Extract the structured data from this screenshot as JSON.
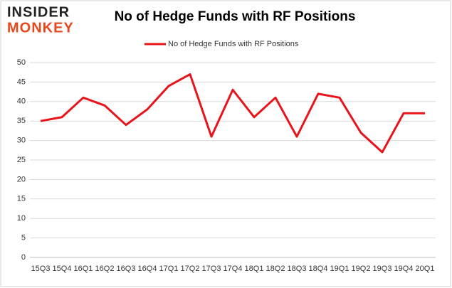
{
  "logo": {
    "top": "INSIDER",
    "bottom": "MONKEY"
  },
  "chart_data": {
    "type": "line",
    "title": "No of Hedge Funds with RF Positions",
    "categories": [
      "15Q3",
      "15Q4",
      "16Q1",
      "16Q2",
      "16Q3",
      "16Q4",
      "17Q1",
      "17Q2",
      "17Q3",
      "17Q4",
      "18Q1",
      "18Q2",
      "18Q3",
      "18Q4",
      "19Q1",
      "19Q2",
      "19Q3",
      "19Q4",
      "20Q1"
    ],
    "series": [
      {
        "name": "No of Hedge Funds with RF Positions",
        "color": "#e8141b",
        "values": [
          35,
          36,
          41,
          39,
          34,
          38,
          44,
          47,
          31,
          43,
          36,
          41,
          31,
          42,
          41,
          32,
          27,
          37,
          37
        ]
      }
    ],
    "ylim": [
      0,
      50
    ],
    "yticks": [
      0,
      5,
      10,
      15,
      20,
      25,
      30,
      35,
      40,
      45,
      50
    ],
    "grid": true,
    "legend": "top"
  }
}
